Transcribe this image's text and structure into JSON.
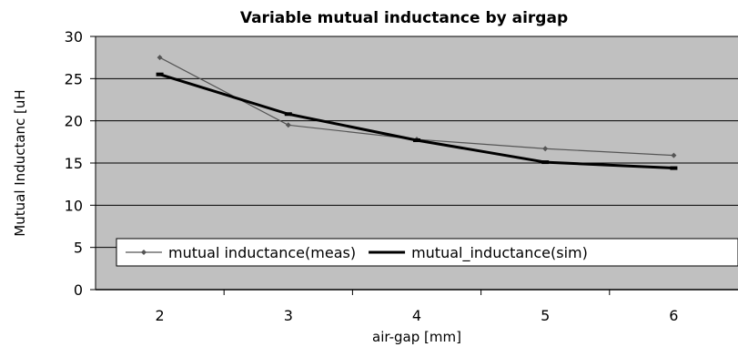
{
  "chart_data": {
    "type": "line",
    "title": "Variable mutual inductance by airgap",
    "xlabel": "air-gap [mm]",
    "ylabel": "Mutual Inductanc [uH",
    "x": [
      2,
      3,
      4,
      5,
      6
    ],
    "xlim": [
      1.5,
      6.5
    ],
    "ylim": [
      0,
      30
    ],
    "yticks": [
      0,
      5,
      10,
      15,
      20,
      25,
      30
    ],
    "grid": true,
    "legend_position": "bottom-inside",
    "plot_background": "#c0c0c0",
    "series": [
      {
        "name": "mutual inductance(meas)",
        "values": [
          27.5,
          19.5,
          17.8,
          16.7,
          15.9
        ],
        "color": "#555555",
        "marker": "diamond",
        "weight": "thin"
      },
      {
        "name": "mutual_inductance(sim)",
        "values": [
          25.5,
          20.8,
          17.7,
          15.1,
          14.4
        ],
        "color": "#000000",
        "marker": "dash",
        "weight": "thick"
      }
    ]
  }
}
